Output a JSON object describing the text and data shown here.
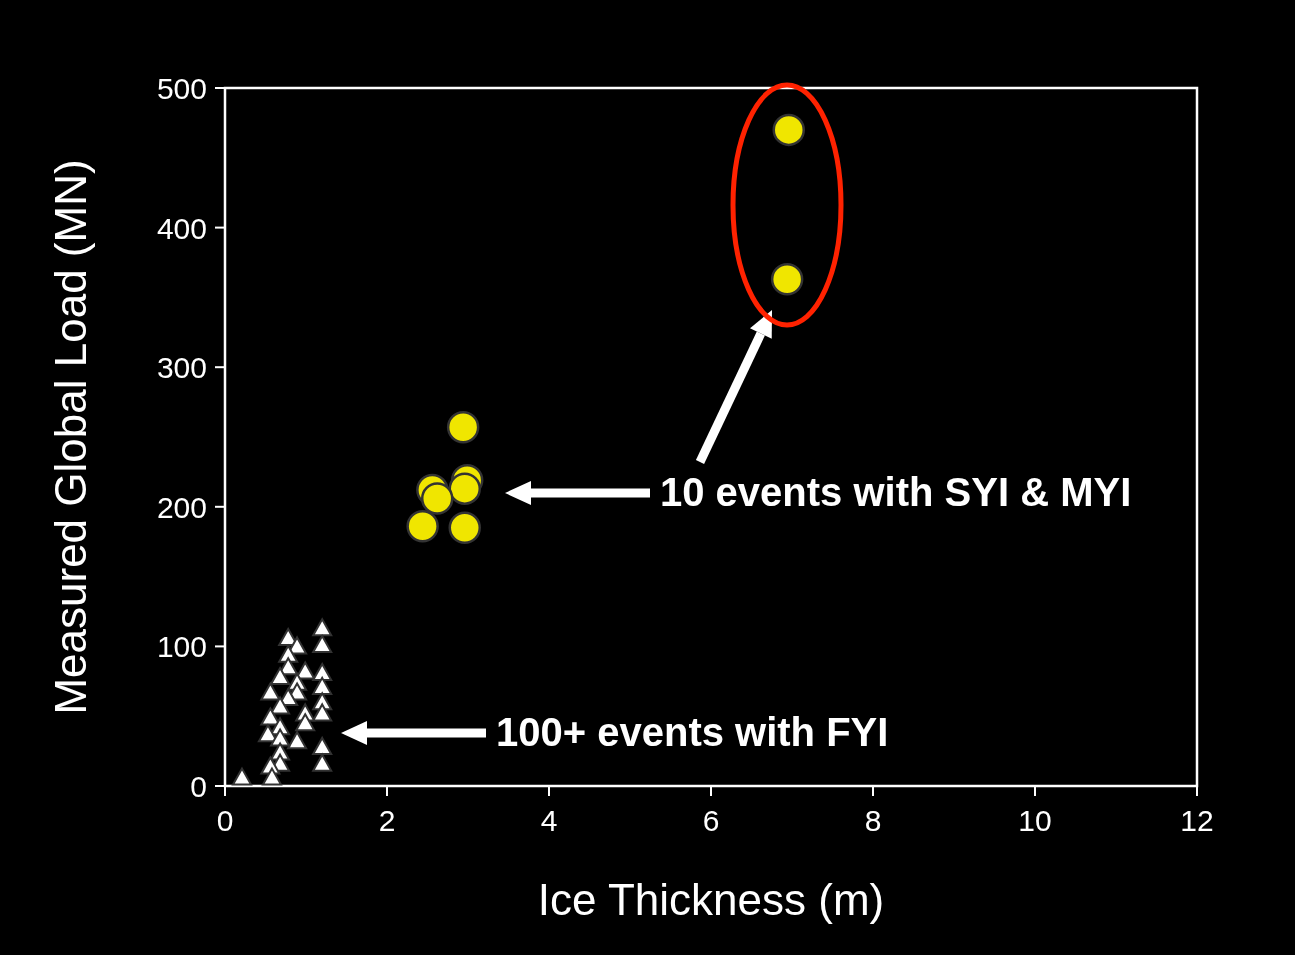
{
  "chart_data": {
    "type": "scatter",
    "xlabel": "Ice Thickness (m)",
    "ylabel": "Measured Global Load (MN)",
    "xlim": [
      0,
      12
    ],
    "xticks": [
      0,
      2,
      4,
      6,
      8,
      10,
      12
    ],
    "ylim": [
      0,
      500
    ],
    "yticks": [
      0,
      100,
      200,
      300,
      400,
      500
    ],
    "grid": false,
    "series": [
      {
        "color": "#f0e600",
        "marker": "circle",
        "x": [
          2.94,
          2.99,
          2.96,
          2.56,
          2.62,
          2.44,
          2.96,
          6.96,
          6.94
        ],
        "values": [
          257,
          219,
          213,
          212,
          206,
          186,
          185,
          470,
          363
        ]
      },
      {
        "color": "#ffffff",
        "marker": "triangle",
        "x": [
          0.78,
          1.2,
          0.89,
          1.2,
          0.78,
          0.78,
          0.99,
          0.68,
          1.2,
          0.89,
          1.2,
          0.56,
          0.89,
          0.78,
          0.68,
          1.2,
          1.2,
          0.99,
          0.56,
          0.68,
          0.99,
          0.53,
          0.89,
          0.68,
          0.68,
          1.2,
          1.2,
          0.68,
          0.56,
          0.21,
          0.58
        ],
        "values": [
          106,
          113,
          100,
          101,
          94,
          85,
          82,
          78,
          81,
          74,
          71,
          67,
          67,
          63,
          57,
          60,
          52,
          52,
          49,
          42,
          45,
          37,
          32,
          34,
          24,
          28,
          16,
          16,
          14,
          6,
          6
        ]
      }
    ],
    "annotations": [
      "10 events with SYI & MYI",
      "100+ events with FYI"
    ]
  }
}
